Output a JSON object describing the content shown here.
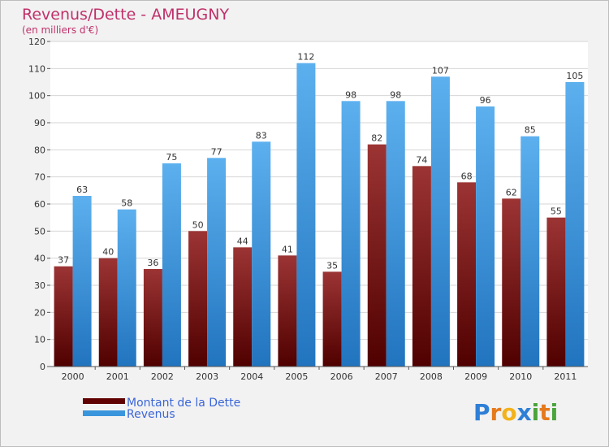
{
  "chart_data": {
    "type": "bar",
    "title": "Revenus/Dette - AMEUGNY",
    "subtitle": "(en milliers d'€)",
    "categories": [
      "2000",
      "2001",
      "2002",
      "2003",
      "2004",
      "2005",
      "2006",
      "2007",
      "2008",
      "2009",
      "2010",
      "2011"
    ],
    "series": [
      {
        "name": "Montant de la Dette",
        "values": [
          37,
          40,
          36,
          50,
          44,
          41,
          35,
          82,
          74,
          68,
          62,
          55
        ],
        "color": "#7a1010"
      },
      {
        "name": "Revenus",
        "values": [
          63,
          58,
          75,
          77,
          83,
          112,
          98,
          98,
          107,
          96,
          85,
          105
        ],
        "color": "#3a96dc"
      }
    ],
    "ylim": [
      0,
      120
    ],
    "yticks": [
      0,
      10,
      20,
      30,
      40,
      50,
      60,
      70,
      80,
      90,
      100,
      110,
      120
    ],
    "grid": true,
    "legend_position": "bottom-left"
  },
  "logo": {
    "letters": [
      {
        "ch": "P",
        "color": "#2e7fd6"
      },
      {
        "ch": "r",
        "color": "#e57a1c"
      },
      {
        "ch": "o",
        "color": "#f2b21b"
      },
      {
        "ch": "x",
        "color": "#2e7fd6"
      },
      {
        "ch": "i",
        "color": "#4aa43a"
      },
      {
        "ch": "t",
        "color": "#e57a1c"
      },
      {
        "ch": "i",
        "color": "#4aa43a"
      }
    ]
  }
}
